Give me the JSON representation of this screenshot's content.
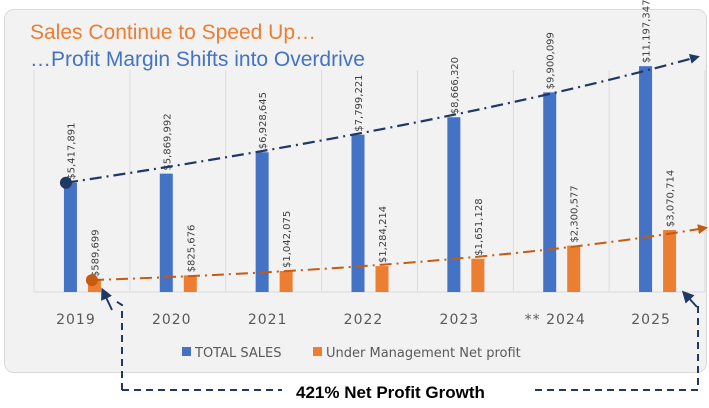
{
  "chart_data": {
    "type": "bar",
    "title": "Sales Continue to Speed Up…",
    "subtitle": "…Profit Margin Shifts into Overdrive",
    "categories": [
      "2019",
      "2020",
      "2021",
      "2022",
      "2023",
      "** 2024",
      "2025"
    ],
    "series": [
      {
        "name": "TOTAL SALES",
        "color": "#4472c4",
        "values": [
          5417891,
          5869992,
          6928645,
          7799221,
          8666320,
          9900099,
          11197347
        ],
        "labels": [
          "$5,417,891",
          "$5,869,992",
          "$6,928,645",
          "$7,799,221",
          "$8,666,320",
          "$9,900,099",
          "$11,197,347"
        ]
      },
      {
        "name": "Under Management Net profit",
        "color": "#ed7d31",
        "values": [
          589699,
          825676,
          1042075,
          1284214,
          1651128,
          2300577,
          3070714
        ],
        "labels": [
          "$589,699",
          "$825,676",
          "$1,042,075",
          "$1,284,214",
          "$1,651,128",
          "$2,300,577",
          "$3,070,714"
        ]
      }
    ],
    "xlabel": "",
    "ylabel": "",
    "ylim": [
      0,
      12000000
    ],
    "grid": "vertical category separators",
    "legend": "bottom-center",
    "trendlines": [
      {
        "series": "TOTAL SALES",
        "color": "#1f3864",
        "style": "dash-dot arrow"
      },
      {
        "series": "Under Management Net profit",
        "color": "#c55a11",
        "style": "dash-dot arrow"
      }
    ],
    "annotation": "421% Net Profit Growth"
  }
}
